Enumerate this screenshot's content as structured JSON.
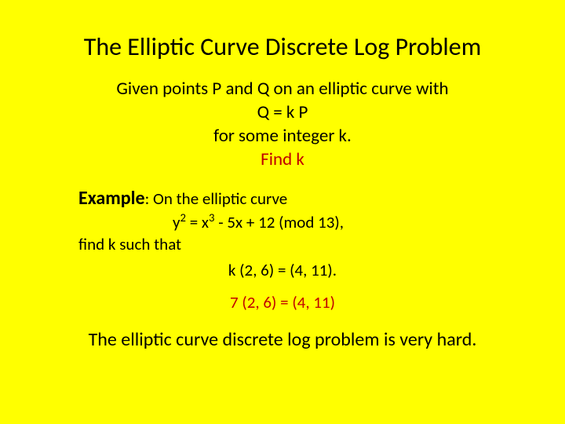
{
  "background_color": "#ffff00",
  "text_color": "#000000",
  "accent_color": "#c00000",
  "title": {
    "text": "The Elliptic Curve Discrete Log Problem",
    "fontsize": 32
  },
  "given": {
    "line1": "Given points P and Q on an elliptic curve with",
    "line2": "Q = k P",
    "line3": "for some integer k.",
    "line4": "Find k",
    "fontsize": 23
  },
  "example": {
    "label": "Example",
    "intro": ":  On the elliptic curve",
    "equation_prefix": "y",
    "equation_sup1": "2",
    "equation_mid": " = x",
    "equation_sup2": "3",
    "equation_suffix": " - 5x + 12 (mod 13),",
    "find_text": "find k such that",
    "target": "k (2, 6) = (4, 11).",
    "fontsize": 21
  },
  "answer": {
    "text": "7 (2, 6) = (4, 11)",
    "fontsize": 21
  },
  "conclusion": {
    "text": "The elliptic curve discrete log problem is very hard.",
    "fontsize": 24
  }
}
